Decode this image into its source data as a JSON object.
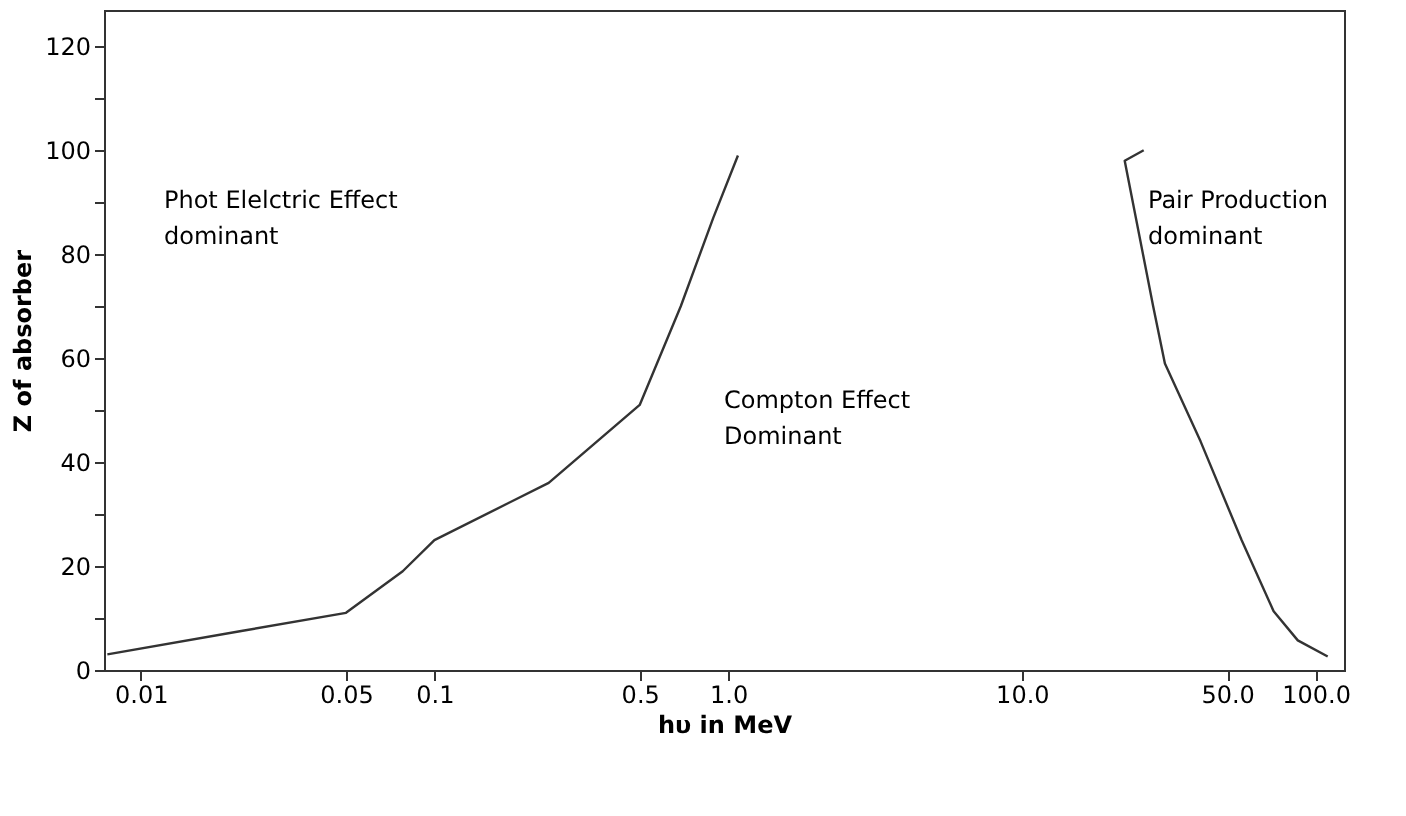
{
  "chart_data": {
    "type": "line",
    "xlabel": "hυ in MeV",
    "ylabel": "Z of absorber",
    "log": "x",
    "grid": false,
    "marker": "none",
    "line_style": "solid",
    "xlim": [
      0.0075,
      125
    ],
    "xticks": [
      0.01,
      0.05,
      0.1,
      0.5,
      {
        "value": 1,
        "label": "1.0"
      },
      {
        "value": 10,
        "label": "10.0"
      },
      {
        "value": 50,
        "label": "50.0"
      },
      {
        "value": 100,
        "label": "100.0"
      }
    ],
    "ylim": [
      0,
      127
    ],
    "yticks": [
      0,
      {
        "value": 10,
        "label": null
      },
      20,
      {
        "value": 30,
        "label": null
      },
      40,
      {
        "value": 50,
        "label": null
      },
      60,
      {
        "value": 70,
        "label": null
      },
      80,
      {
        "value": 90,
        "label": null
      },
      100,
      {
        "value": 110,
        "label": null
      },
      120
    ],
    "series": [
      {
        "color": "#333333",
        "x": [
          0.0077,
          0.022,
          0.05,
          0.078,
          0.1,
          0.245,
          0.5,
          0.69,
          0.89,
          1.08
        ],
        "values": [
          3,
          7.5,
          11,
          19,
          25,
          36,
          51,
          70,
          87,
          99
        ]
      },
      {
        "color": "#333333",
        "x": [
          26,
          22.4,
          28,
          30.7,
          40.6,
          56,
          72,
          87,
          110
        ],
        "values": [
          100,
          98,
          70,
          59,
          44,
          25,
          11.3,
          5.7,
          2.6
        ]
      }
    ],
    "annotations": [
      "Phot Elelctric Effect\ndominant",
      "Compton Effect\nDominant",
      "Pair Production\n dominant"
    ]
  }
}
